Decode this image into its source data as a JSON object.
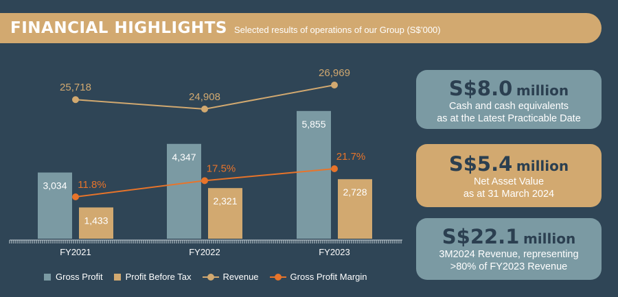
{
  "banner": {
    "title": "FINANCIAL HIGHLIGHTS",
    "subtitle": "Selected results of operations of our Group (S$’000)"
  },
  "colors": {
    "background": "#2f4556",
    "gross_profit": "#7b9aa3",
    "profit_before_tax": "#d2a970",
    "revenue": "#d2a970",
    "gross_profit_margin": "#e8742a"
  },
  "chart_data": {
    "type": "bar",
    "categories": [
      "FY2021",
      "FY2022",
      "FY2023"
    ],
    "series": [
      {
        "name": "Gross Profit",
        "type": "bar",
        "values": [
          3034,
          4347,
          5855
        ],
        "labels": [
          "3,034",
          "4,347",
          "5,855"
        ]
      },
      {
        "name": "Profit Before Tax",
        "type": "bar",
        "values": [
          1433,
          2321,
          2728
        ],
        "labels": [
          "1,433",
          "2,321",
          "2,728"
        ]
      },
      {
        "name": "Revenue",
        "type": "line",
        "values": [
          25718,
          24908,
          26969
        ],
        "labels": [
          "25,718",
          "24,908",
          "26,969"
        ]
      },
      {
        "name": "Gross Profit Margin",
        "type": "line",
        "values": [
          11.8,
          17.5,
          21.7
        ],
        "labels": [
          "11.8%",
          "17.5%",
          "21.7%"
        ]
      }
    ],
    "legend_position": "bottom",
    "grid": false
  },
  "cards": [
    {
      "figure": "S$8.0",
      "unit": "million",
      "lines": [
        "Cash and cash equivalents",
        "as at the Latest Practicable Date"
      ],
      "color": "#7b9aa3"
    },
    {
      "figure": "S$5.4",
      "unit": "million",
      "lines": [
        "Net Asset Value",
        "as at 31 March 2024"
      ],
      "color": "#d2a970"
    },
    {
      "figure": "S$22.1",
      "unit": "million",
      "lines": [
        "3M2024 Revenue, representing",
        ">80% of FY2023 Revenue"
      ],
      "color": "#7b9aa3"
    }
  ]
}
